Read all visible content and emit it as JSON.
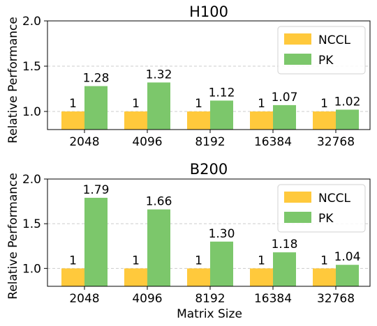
{
  "figure": {
    "xlabel": "Matrix Size",
    "ylabel": "Relative Performance"
  },
  "chart_data": [
    {
      "type": "bar",
      "title": "H100",
      "categories": [
        "2048",
        "4096",
        "8192",
        "16384",
        "32768"
      ],
      "series": [
        {
          "name": "NCCL",
          "values": [
            1,
            1,
            1,
            1,
            1
          ],
          "labels": [
            "1",
            "1",
            "1",
            "1",
            "1"
          ],
          "color": "#ffc93c"
        },
        {
          "name": "PK",
          "values": [
            1.28,
            1.32,
            1.12,
            1.07,
            1.02
          ],
          "labels": [
            "1.28",
            "1.32",
            "1.12",
            "1.07",
            "1.02"
          ],
          "color": "#7cc76b"
        }
      ],
      "ylim": [
        0.8,
        2.0
      ],
      "yticks": [
        "1.0",
        "1.5",
        "2.0"
      ],
      "grid": true,
      "legend": "top-right"
    },
    {
      "type": "bar",
      "title": "B200",
      "categories": [
        "2048",
        "4096",
        "8192",
        "16384",
        "32768"
      ],
      "series": [
        {
          "name": "NCCL",
          "values": [
            1,
            1,
            1,
            1,
            1
          ],
          "labels": [
            "1",
            "1",
            "1",
            "1",
            "1"
          ],
          "color": "#ffc93c"
        },
        {
          "name": "PK",
          "values": [
            1.79,
            1.66,
            1.3,
            1.18,
            1.04
          ],
          "labels": [
            "1.79",
            "1.66",
            "1.30",
            "1.18",
            "1.04"
          ],
          "color": "#7cc76b"
        }
      ],
      "ylim": [
        0.8,
        2.0
      ],
      "yticks": [
        "1.0",
        "1.5",
        "2.0"
      ],
      "grid": true,
      "legend": "top-right"
    }
  ]
}
